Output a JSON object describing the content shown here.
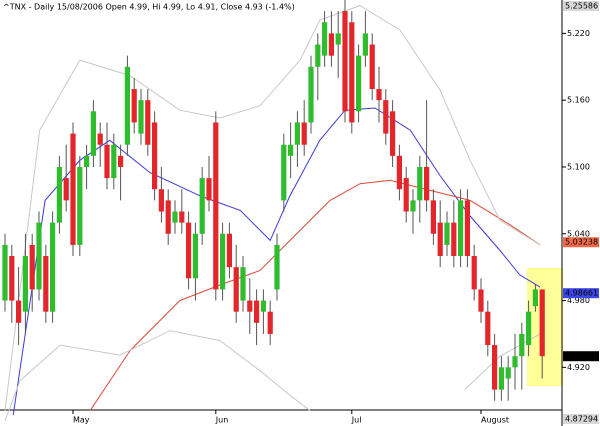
{
  "chart_data": {
    "type": "candlestick",
    "title": "^TNX - Daily 15/08/2006 Open 4.99, Hi 4.99, Lo 4.91, Close 4.93 (-1.4%)",
    "categories": [
      null,
      null,
      null,
      null,
      null,
      null,
      null,
      null,
      null,
      null,
      "May",
      null,
      null,
      null,
      null,
      null,
      null,
      null,
      null,
      null,
      null,
      null,
      null,
      null,
      null,
      null,
      null,
      null,
      null,
      null,
      null,
      "Jun",
      null,
      null,
      null,
      null,
      null,
      null,
      null,
      null,
      null,
      null,
      null,
      null,
      null,
      null,
      null,
      null,
      null,
      null,
      null,
      "Jul",
      null,
      null,
      null,
      null,
      null,
      null,
      null,
      null,
      null,
      null,
      null,
      null,
      null,
      null,
      null,
      null,
      null,
      null,
      "August",
      null,
      null,
      null,
      null,
      null,
      null,
      null,
      null,
      null
    ],
    "open": [
      4.98,
      5.02,
      4.98,
      4.97,
      5.03,
      4.99,
      5.02,
      4.97,
      5.05,
      5.09,
      5.13,
      5.03,
      5.1,
      5.11,
      5.13,
      5.12,
      5.09,
      5.11,
      5.12,
      5.17,
      5.13,
      5.16,
      5.14,
      5.08,
      5.07,
      5.05,
      5.06,
      5.05,
      5.0,
      5.04,
      5.09,
      5.14,
      4.99,
      5.04,
      5.01,
      4.98,
      4.98,
      4.98,
      4.97,
      4.97,
      4.99,
      5.07,
      5.11,
      5.12,
      5.14,
      5.14,
      5.19,
      5.2,
      5.22,
      5.21,
      5.24,
      5.23,
      5.15,
      5.2,
      5.21,
      5.17,
      5.16,
      5.15,
      5.11,
      5.09,
      5.06,
      5.07,
      5.1,
      5.07,
      5.05,
      5.03,
      5.05,
      5.02,
      5.07,
      5.02,
      4.99,
      4.97,
      4.94,
      4.9,
      4.91,
      4.92,
      4.93,
      4.94,
      4.975,
      4.99
    ],
    "high": [
      5.04,
      5.03,
      5.01,
      5.04,
      5.04,
      5.06,
      5.03,
      5.06,
      5.11,
      5.12,
      5.14,
      5.11,
      5.12,
      5.16,
      5.14,
      5.14,
      5.13,
      5.12,
      5.2,
      5.18,
      5.17,
      5.17,
      5.15,
      5.1,
      5.08,
      5.07,
      5.08,
      5.06,
      5.05,
      5.1,
      5.11,
      5.15,
      5.05,
      5.05,
      5.03,
      5.02,
      5.0,
      4.99,
      4.99,
      4.98,
      5.04,
      5.13,
      5.14,
      5.15,
      5.16,
      5.2,
      5.22,
      5.24,
      5.24,
      5.24,
      5.25,
      5.24,
      5.21,
      5.24,
      5.22,
      5.19,
      5.17,
      5.16,
      5.12,
      5.1,
      5.08,
      5.11,
      5.16,
      5.08,
      5.07,
      5.06,
      5.07,
      5.08,
      5.08,
      5.03,
      5.0,
      4.98,
      4.95,
      4.93,
      4.93,
      4.95,
      4.96,
      4.98,
      4.995,
      4.99
    ],
    "low": [
      4.97,
      4.96,
      4.94,
      4.95,
      4.97,
      4.98,
      4.96,
      4.96,
      5.04,
      5.06,
      5.02,
      5.02,
      5.08,
      5.1,
      5.1,
      5.08,
      5.08,
      5.07,
      5.11,
      5.13,
      5.12,
      5.11,
      5.07,
      5.05,
      5.03,
      5.04,
      5.04,
      4.99,
      4.98,
      5.03,
      5.06,
      4.98,
      4.98,
      5.0,
      4.96,
      4.97,
      4.95,
      4.94,
      4.95,
      4.94,
      4.98,
      5.06,
      5.09,
      5.1,
      5.11,
      5.13,
      5.16,
      5.19,
      5.19,
      5.18,
      5.14,
      5.13,
      5.14,
      5.19,
      5.16,
      5.14,
      5.12,
      5.1,
      5.07,
      5.05,
      5.04,
      5.05,
      5.06,
      5.03,
      5.01,
      5.02,
      5.01,
      5.01,
      5.01,
      4.98,
      4.96,
      4.93,
      4.89,
      4.89,
      4.89,
      4.9,
      4.9,
      4.93,
      4.97,
      4.91
    ],
    "close": [
      5.03,
      4.98,
      4.96,
      5.02,
      4.99,
      5.05,
      4.97,
      5.05,
      5.1,
      5.07,
      5.03,
      5.1,
      5.11,
      5.15,
      5.12,
      5.09,
      5.12,
      5.1,
      5.19,
      5.14,
      5.16,
      5.12,
      5.08,
      5.06,
      5.04,
      5.06,
      5.05,
      5.0,
      5.04,
      5.09,
      5.07,
      4.99,
      5.04,
      5.01,
      4.97,
      5.01,
      4.97,
      4.96,
      4.98,
      4.95,
      5.03,
      5.12,
      5.12,
      5.14,
      5.12,
      5.19,
      5.21,
      5.23,
      5.2,
      5.22,
      5.15,
      5.14,
      5.2,
      5.22,
      5.17,
      5.16,
      5.13,
      5.11,
      5.08,
      5.06,
      5.07,
      5.1,
      5.07,
      5.04,
      5.02,
      5.05,
      5.02,
      5.07,
      5.02,
      4.99,
      4.97,
      4.94,
      4.9,
      4.92,
      4.92,
      4.93,
      4.95,
      4.97,
      4.99,
      4.93
    ],
    "up_color": "#2fbd2f",
    "down_color": "#e3262b",
    "ylim": [
      4.87,
      5.25
    ],
    "yticks": [
      {
        "value": 5.22,
        "label": "5.220"
      },
      {
        "value": 5.16,
        "label": "5.160"
      },
      {
        "value": 5.1,
        "label": "5.100"
      },
      {
        "value": 5.04,
        "label": "5.040"
      },
      {
        "value": 4.98,
        "label": "4.980"
      },
      {
        "value": 4.92,
        "label": "4.920"
      }
    ],
    "overlays": [
      {
        "color": "#3b3bd9",
        "x": [
          1.2,
          5.9,
          11,
          15.4,
          21.3,
          28.7,
          34.6,
          39,
          41.9,
          46.3,
          50,
          54.4,
          59.6,
          64,
          68.4,
          72.8,
          75.7,
          78.7
        ],
        "values": [
          4.877,
          5.07,
          5.106,
          5.124,
          5.095,
          5.074,
          5.061,
          5.034,
          5.074,
          5.124,
          5.151,
          5.153,
          5.133,
          5.092,
          5.056,
          5.025,
          5.003,
          4.992
        ]
      },
      {
        "color": "#e04a3a",
        "x": [
          12.5,
          18.4,
          25.7,
          31.6,
          37.5,
          43.4,
          47.8,
          52.2,
          56.6,
          62.5,
          68.4,
          74.3,
          78.7
        ],
        "values": [
          4.881,
          4.935,
          4.98,
          4.994,
          5.007,
          5.043,
          5.07,
          5.085,
          5.088,
          5.079,
          5.07,
          5.048,
          5.03
        ]
      },
      {
        "color": "#c8c8c8",
        "x": [
          0,
          5.1,
          11,
          18.4,
          25.7,
          31.6,
          37.5,
          43.4,
          46.3,
          52.2,
          58.1,
          64,
          68.4,
          72.8,
          78.7
        ],
        "values": [
          4.881,
          5.133,
          5.196,
          5.182,
          5.151,
          5.144,
          5.155,
          5.196,
          5.232,
          5.245,
          5.223,
          5.169,
          5.106,
          5.052,
          5.03
        ]
      },
      {
        "color": "#c8c8c8",
        "x": [
          0,
          2.2,
          8.1,
          16.9,
          24.3,
          31.6,
          37.5,
          41.9,
          44.9,
          60,
          67.6,
          72.8,
          78.7
        ],
        "values": [
          4.872,
          4.908,
          4.94,
          4.931,
          4.953,
          4.944,
          4.917,
          4.895,
          4.881,
          null,
          4.9,
          4.93,
          4.95
        ]
      }
    ],
    "price_tags": [
      {
        "value": 5.25586,
        "label": "5.25586",
        "color": "#d8d8d8",
        "text_color": "#000000"
      },
      {
        "value": 5.03238,
        "label": "5.03238",
        "color": "#f06a4a",
        "text_color": "#000000"
      },
      {
        "value": 4.98661,
        "label": "4.98661",
        "color": "#3c46e6",
        "text_color": "#ffffff"
      },
      {
        "value": 4.93,
        "label": "4.93",
        "color": "#000000",
        "text_color": "#ffffff"
      },
      {
        "value": 4.87294,
        "label": "4.87294",
        "color": "#d8d8d8",
        "text_color": "#000000"
      }
    ]
  }
}
